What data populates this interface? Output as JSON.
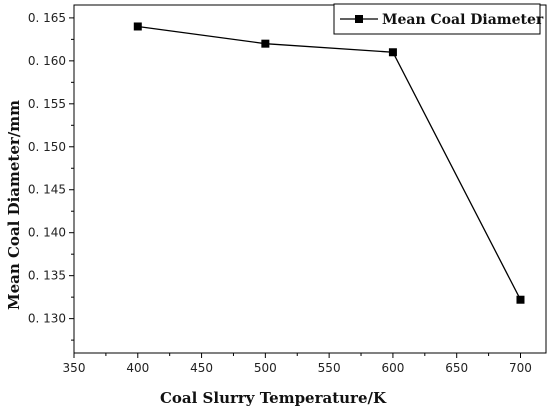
{
  "chart_data": {
    "type": "line",
    "title": "",
    "xlabel": "Coal Slurry Temperature/K",
    "ylabel": "Mean Coal Diameter/mm",
    "xlim": [
      350,
      720
    ],
    "ylim": [
      0.126,
      0.1665
    ],
    "x_ticks": [
      350,
      400,
      450,
      500,
      550,
      600,
      650,
      700
    ],
    "y_ticks": [
      0.13,
      0.135,
      0.14,
      0.145,
      0.15,
      0.155,
      0.16,
      0.165
    ],
    "x_tick_labels": [
      "350",
      "400",
      "450",
      "500",
      "550",
      "600",
      "650",
      "700"
    ],
    "y_tick_labels": [
      "0. 130",
      "0. 135",
      "0. 140",
      "0. 145",
      "0. 150",
      "0. 155",
      "0. 160",
      "0. 165"
    ],
    "grid": false,
    "legend_position": "top-right",
    "series": [
      {
        "name": "Mean Coal Diameter",
        "marker": "square",
        "color": "#000000",
        "x": [
          400,
          500,
          600,
          700
        ],
        "y": [
          0.164,
          0.162,
          0.161,
          0.1322
        ]
      }
    ]
  }
}
